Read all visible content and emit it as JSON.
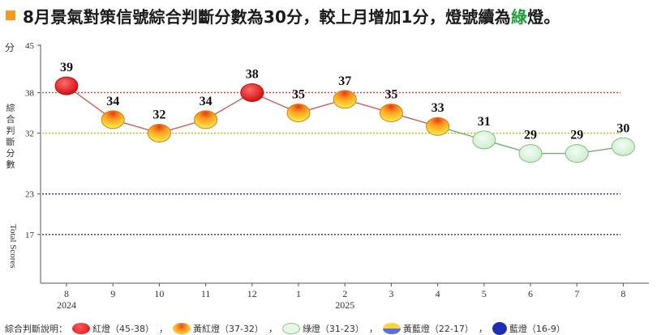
{
  "header": {
    "title_before": "8月景氣對策信號綜合判斷分數為30分，較上月增加1分，燈號續為",
    "title_highlight": "綠",
    "title_after": "燈。"
  },
  "colors": {
    "accent": "#f29a1e",
    "green_text": "#1b9e3a",
    "red": "#e02020",
    "yellow_red": "#f5a020",
    "green": "#d9f3d9",
    "yellow_blue": "#e8cc40",
    "blue": "#1d2fb5",
    "red_line": "#e03a3a",
    "yellow_line": "#b8c000",
    "blue_line": "#2a2aa0"
  },
  "chart_data": {
    "type": "line",
    "ylabel_unit": "分",
    "ylabel_chinese": "綜合判斷分數",
    "ylabel_english": "Total Scores",
    "y_ticks": [
      45,
      38,
      32,
      23,
      17
    ],
    "ylim": [
      9,
      45
    ],
    "x_labels": [
      "8",
      "9",
      "10",
      "11",
      "12",
      "1",
      "2",
      "3",
      "4",
      "5",
      "6",
      "7",
      "8"
    ],
    "year_labels": [
      {
        "index": 0,
        "text": "2024"
      },
      {
        "index": 6,
        "text": "2025"
      }
    ],
    "values": [
      39,
      34,
      32,
      34,
      38,
      35,
      37,
      35,
      33,
      31,
      29,
      29,
      30
    ],
    "signals": [
      "red",
      "yellow-red",
      "yellow-red",
      "yellow-red",
      "red",
      "yellow-red",
      "yellow-red",
      "yellow-red",
      "yellow-red",
      "green",
      "green",
      "green",
      "green"
    ],
    "threshold_lines": [
      {
        "value": 38,
        "color": "#e03a3a"
      },
      {
        "value": 32,
        "color": "#b8c000"
      },
      {
        "value": 23,
        "color": "#2a2aa0"
      },
      {
        "value": 17,
        "color": "#2a2aa0"
      }
    ],
    "grid": false
  },
  "legend": {
    "title": "綜合判斷說明：",
    "items": [
      {
        "swatch": "red",
        "label": "紅燈（45-38）"
      },
      {
        "swatch": "yellow-red",
        "label": "黃紅燈（37-32）"
      },
      {
        "swatch": "green",
        "label": "綠燈（31-23）"
      },
      {
        "swatch": "yellow-blue",
        "label": "黃藍燈（22-17）"
      },
      {
        "swatch": "blue",
        "label": "藍燈（16-9）"
      }
    ],
    "separator": "，"
  }
}
